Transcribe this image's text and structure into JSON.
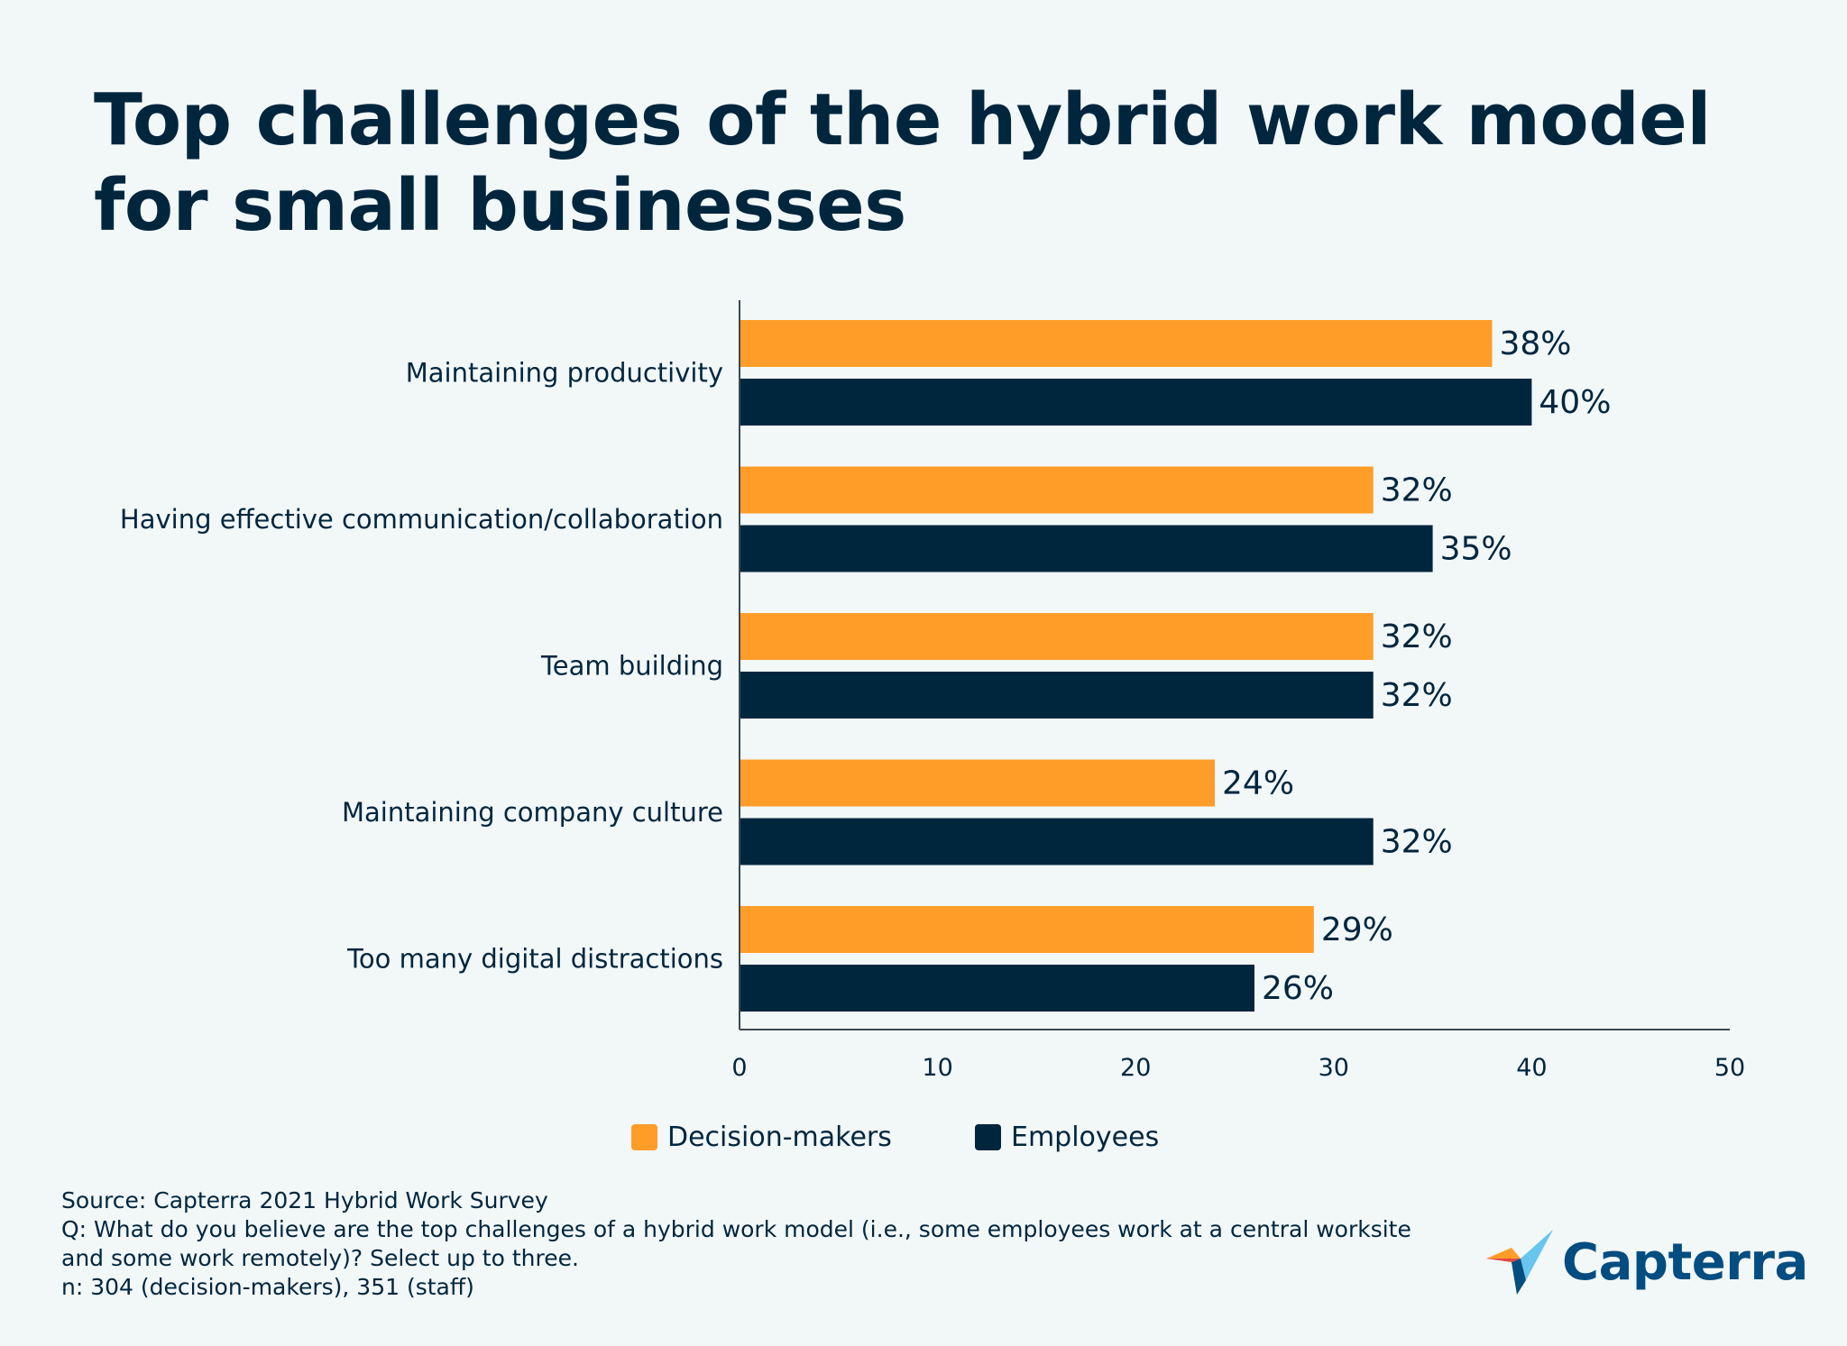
{
  "title_line1": "Top challenges of the hybrid work model",
  "title_line2": "for small businesses",
  "colors": {
    "decision_makers": "#ff9d28",
    "employees": "#00263e",
    "text": "#00263e",
    "background": "#f2f7f8"
  },
  "chart_data": {
    "type": "bar",
    "orientation": "horizontal",
    "categories": [
      "Maintaining productivity",
      "Having effective communication/collaboration",
      "Team building",
      "Maintaining company culture",
      "Too many digital distractions"
    ],
    "series": [
      {
        "name": "Decision-makers",
        "values": [
          38,
          32,
          32,
          24,
          29
        ],
        "labels": [
          "38%",
          "32%",
          "32%",
          "24%",
          "29%"
        ]
      },
      {
        "name": "Employees",
        "values": [
          40,
          35,
          32,
          32,
          26
        ],
        "labels": [
          "40%",
          "35%",
          "32%",
          "32%",
          "26%"
        ]
      }
    ],
    "xlim": [
      0,
      50
    ],
    "xticks": [
      0,
      10,
      20,
      30,
      40,
      50
    ],
    "grid": false,
    "legend_position": "bottom"
  },
  "source": {
    "line1": "Source: Capterra 2021 Hybrid Work Survey",
    "line2": "Q: What do you believe are the top challenges of a hybrid work model (i.e., some employees work at a central worksite",
    "line3": "and some work remotely)? Select up to three.",
    "line4": "n: 304 (decision-makers), 351 (staff)"
  },
  "logo": {
    "text": "Capterra"
  }
}
